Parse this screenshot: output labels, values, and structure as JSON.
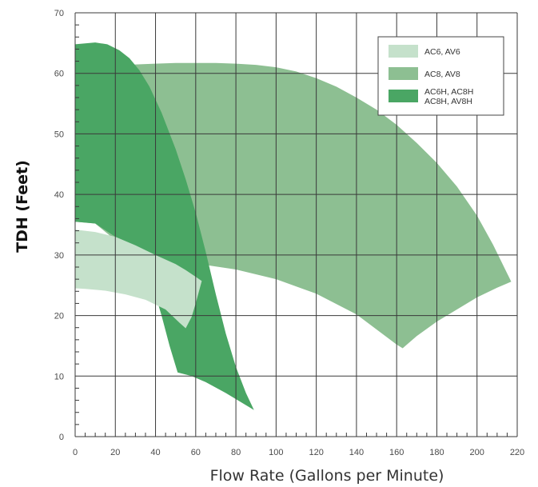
{
  "chart_data": {
    "type": "area",
    "xlabel": "Flow Rate (Gallons per Minute)",
    "ylabel": "TDH (Feet)",
    "xlim": [
      0,
      220
    ],
    "ylim": [
      0,
      70
    ],
    "x_ticks": [
      0,
      20,
      40,
      60,
      80,
      100,
      120,
      140,
      160,
      180,
      200,
      220
    ],
    "y_ticks": [
      0,
      10,
      20,
      30,
      40,
      50,
      60,
      70
    ],
    "grid": true,
    "minor_ticks": true,
    "legend_position": "top-right",
    "series": [
      {
        "legend": "AC8, AV8",
        "color": "#8dbf92",
        "outline": [
          [
            0,
            35.5
          ],
          [
            10,
            35.2
          ],
          [
            18,
            33
          ],
          [
            30,
            31
          ],
          [
            40,
            29.5
          ],
          [
            50,
            29
          ],
          [
            60,
            28.6
          ],
          [
            80,
            27.6
          ],
          [
            100,
            26
          ],
          [
            120,
            23.6
          ],
          [
            140,
            20.2
          ],
          [
            160,
            15.2
          ],
          [
            163,
            14.6
          ],
          [
            170,
            16.6
          ],
          [
            180,
            19
          ],
          [
            190,
            21
          ],
          [
            200,
            23
          ],
          [
            210,
            24.6
          ],
          [
            217,
            25.6
          ],
          [
            208,
            31.7
          ],
          [
            200,
            36.5
          ],
          [
            190,
            41.3
          ],
          [
            180,
            45.2
          ],
          [
            170,
            48.5
          ],
          [
            160,
            51.5
          ],
          [
            150,
            54
          ],
          [
            140,
            56
          ],
          [
            130,
            57.8
          ],
          [
            120,
            59.2
          ],
          [
            110,
            60.3
          ],
          [
            100,
            61
          ],
          [
            90,
            61.4
          ],
          [
            80,
            61.6
          ],
          [
            70,
            61.7
          ],
          [
            60,
            61.7
          ],
          [
            50,
            61.7
          ],
          [
            40,
            61.6
          ],
          [
            25,
            61.4
          ],
          [
            25,
            45
          ],
          [
            15,
            42
          ],
          [
            0,
            42
          ]
        ]
      },
      {
        "legend": "AC6H, AC8H\nAC8H, AV8H",
        "color": "#4aa664",
        "outline": [
          [
            0,
            64.8
          ],
          [
            10,
            65.1
          ],
          [
            16,
            64.8
          ],
          [
            22,
            63.8
          ],
          [
            27,
            62.5
          ],
          [
            32,
            60.5
          ],
          [
            37,
            57.8
          ],
          [
            43,
            53.5
          ],
          [
            50,
            47.5
          ],
          [
            55,
            42.5
          ],
          [
            60,
            37
          ],
          [
            65,
            30.5
          ],
          [
            70,
            23.5
          ],
          [
            75,
            17
          ],
          [
            80,
            11.5
          ],
          [
            85,
            7.2
          ],
          [
            89,
            4.4
          ],
          [
            83,
            5.6
          ],
          [
            75,
            7.2
          ],
          [
            65,
            9
          ],
          [
            58,
            10
          ],
          [
            51,
            10.6
          ],
          [
            47,
            15
          ],
          [
            43,
            20
          ],
          [
            39,
            24.5
          ],
          [
            30,
            29
          ],
          [
            20,
            33
          ],
          [
            10,
            35.2
          ],
          [
            0,
            35.5
          ]
        ]
      },
      {
        "legend": "AC6, AV6",
        "color": "#c5e1cb",
        "outline": [
          [
            0,
            34.2
          ],
          [
            10,
            33.8
          ],
          [
            20,
            33
          ],
          [
            30,
            31.6
          ],
          [
            40,
            30
          ],
          [
            50,
            28.5
          ],
          [
            55,
            27.5
          ],
          [
            60,
            26.4
          ],
          [
            63,
            25.7
          ],
          [
            60,
            22
          ],
          [
            58,
            19.8
          ],
          [
            55,
            17.9
          ],
          [
            52,
            18.8
          ],
          [
            45,
            21
          ],
          [
            35,
            22.6
          ],
          [
            25,
            23.5
          ],
          [
            15,
            24.1
          ],
          [
            5,
            24.4
          ],
          [
            0,
            24.5
          ]
        ]
      }
    ]
  }
}
